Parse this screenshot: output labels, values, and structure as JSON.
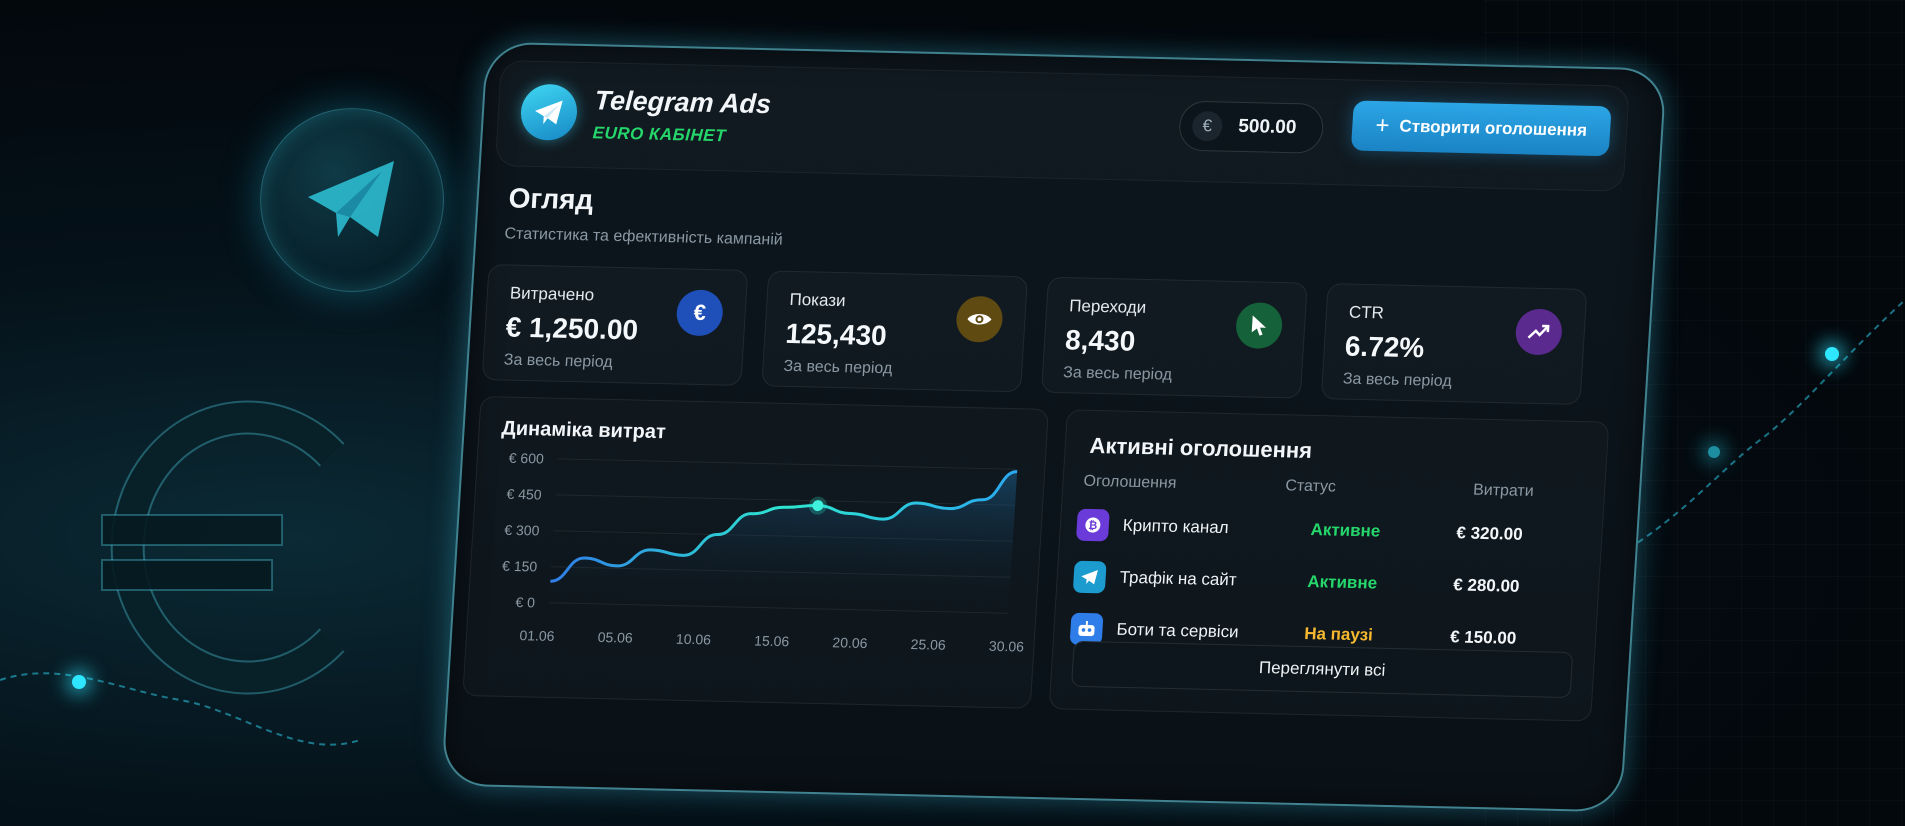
{
  "app": {
    "title": "Telegram Ads",
    "subtitle": "EURO КАБІНЕТ"
  },
  "header": {
    "balance": "500.00",
    "balance_currency_symbol": "€",
    "create_button_label": "Створити оголошення"
  },
  "overview": {
    "title": "Огляд",
    "subtitle": "Статистика та ефективність кампаній"
  },
  "stats": [
    {
      "label": "Витрачено",
      "value": "€ 1,250.00",
      "period": "За весь період",
      "icon": "euro-icon",
      "color": "#1f4fb8"
    },
    {
      "label": "Покази",
      "value": "125,430",
      "period": "За весь період",
      "icon": "eye-icon",
      "color": "#5f4a12"
    },
    {
      "label": "Переходи",
      "value": "8,430",
      "period": "За весь період",
      "icon": "cursor-icon",
      "color": "#14613a"
    },
    {
      "label": "CTR",
      "value": "6.72%",
      "period": "За весь період",
      "icon": "trend-up-icon",
      "color": "#5b2a8e"
    }
  ],
  "chart": {
    "title": "Динаміка витрат",
    "y_ticks": [
      "€ 600",
      "€ 450",
      "€ 300",
      "€ 150",
      "€ 0"
    ],
    "x_ticks": [
      "01.06",
      "05.06",
      "10.06",
      "15.06",
      "20.06",
      "25.06",
      "30.06"
    ]
  },
  "chart_data": {
    "type": "area",
    "title": "Динаміка витрат",
    "xlabel": "",
    "ylabel": "",
    "x": [
      "01.06",
      "03.06",
      "05.06",
      "07.06",
      "10.06",
      "12.06",
      "15.06",
      "17.06",
      "18.06",
      "20.06",
      "22.06",
      "25.06",
      "27.06",
      "30.06",
      "31.06"
    ],
    "values": [
      90,
      190,
      160,
      230,
      210,
      300,
      390,
      420,
      430,
      400,
      380,
      450,
      430,
      470,
      590
    ],
    "ylim": [
      0,
      600
    ],
    "highlight_x": "18.06",
    "grid": true,
    "line_color": "#2aa8f0",
    "accent_color": "#2ee6d0"
  },
  "ads": {
    "title": "Активні оголошення",
    "columns": [
      "Оголошення",
      "Статус",
      "Витрати"
    ],
    "rows": [
      {
        "name": "Крипто канал",
        "status": "Активне",
        "spend": "€ 320.00",
        "icon": "crypto-icon",
        "status_color": "#25d66b"
      },
      {
        "name": "Трафік на сайт",
        "status": "Активне",
        "spend": "€ 280.00",
        "icon": "telegram-icon",
        "status_color": "#25d66b"
      },
      {
        "name": "Боти та сервіси",
        "status": "На паузі",
        "spend": "€ 150.00",
        "icon": "bot-icon",
        "status_color": "#f5b82e"
      }
    ],
    "view_all_label": "Переглянути всі"
  },
  "colors": {
    "accent": "#2ca6e6",
    "active": "#25d66b",
    "paused": "#f5b82e",
    "glow": "#2ee6ff"
  }
}
